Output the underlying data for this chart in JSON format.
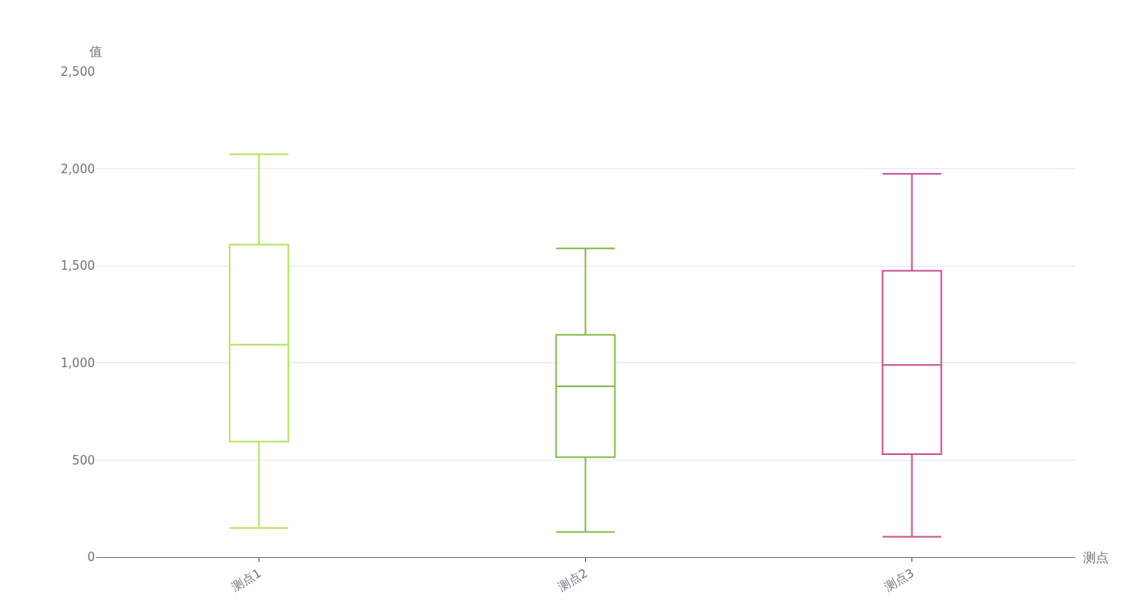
{
  "chart_data": {
    "type": "box",
    "xlabel": "测点",
    "ylabel": "值",
    "categories": [
      "测点1",
      "测点2",
      "测点3"
    ],
    "colors": [
      "#b5e35f",
      "#8ab84a",
      "#c9508f"
    ],
    "boxes": [
      {
        "low": 150,
        "q1": 595,
        "median": 1095,
        "q3": 1610,
        "high": 2075
      },
      {
        "low": 130,
        "q1": 515,
        "median": 880,
        "q3": 1145,
        "high": 1590
      },
      {
        "low": 105,
        "q1": 530,
        "median": 990,
        "q3": 1475,
        "high": 1975
      }
    ],
    "ylim": [
      0,
      2500
    ],
    "yticks": [
      {
        "value": 0,
        "label": "0"
      },
      {
        "value": 500,
        "label": "500"
      },
      {
        "value": 1000,
        "label": "1,000"
      },
      {
        "value": 1500,
        "label": "1,500"
      },
      {
        "value": 2000,
        "label": "2,000"
      },
      {
        "value": 2500,
        "label": "2,500"
      }
    ],
    "grid": "y",
    "legend": false
  }
}
